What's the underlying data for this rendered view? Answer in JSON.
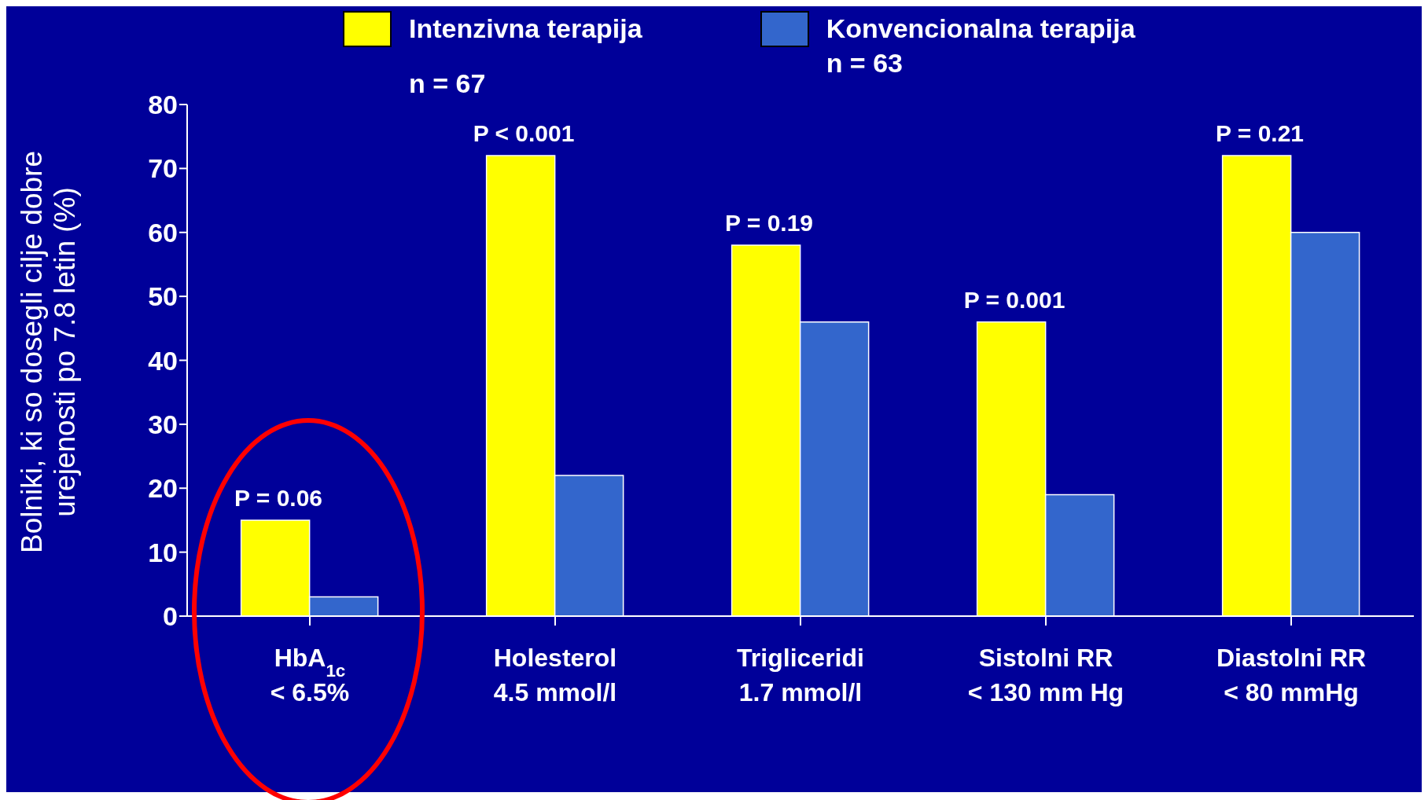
{
  "chart_data": {
    "type": "bar",
    "ylabel": "Bolniki, ki so dosegli cilje dobre\nurejenosti po 7.8 letin (%)",
    "categories": [
      "HbA$_{1c}$\n< 6.5%",
      "Holesterol\n4.5 mmol/l",
      "Trigliceridi\n1.7 mmol/l",
      "Sistolni RR\n< 130 mm Hg",
      "Diastolni RR\n< 80 mmHg"
    ],
    "series": [
      {
        "name": "Intenzivna terapija",
        "color": "#ffff00",
        "values": [
          15,
          72,
          58,
          46,
          72
        ]
      },
      {
        "name": "Konvencionalna terapija",
        "color": "#3366cc",
        "values": [
          3,
          22,
          46,
          19,
          60
        ]
      }
    ],
    "ylim": [
      0,
      80
    ],
    "yticks": [
      0,
      10,
      20,
      30,
      40,
      50,
      60,
      70,
      80
    ],
    "grid": false,
    "legend": "top",
    "annotations": [
      "n = 67",
      "n = 63",
      {
        "text": "P = 0.06",
        "x": "HbA$_{1c}$\n< 6.5%",
        "y": 15
      },
      {
        "text": "P < 0.001",
        "x": "Holesterol\n4.5 mmol/l",
        "y": 72
      },
      {
        "text": "P = 0.19",
        "x": "Trigliceridi\n1.7 mmol/l",
        "y": 58
      },
      {
        "text": "P = 0.001",
        "x": "Sistolni RR\n< 130 mm Hg",
        "y": 46
      },
      {
        "text": "P = 0.21",
        "x": "Diastolni RR\n< 80 mmHg",
        "y": 72
      }
    ]
  }
}
